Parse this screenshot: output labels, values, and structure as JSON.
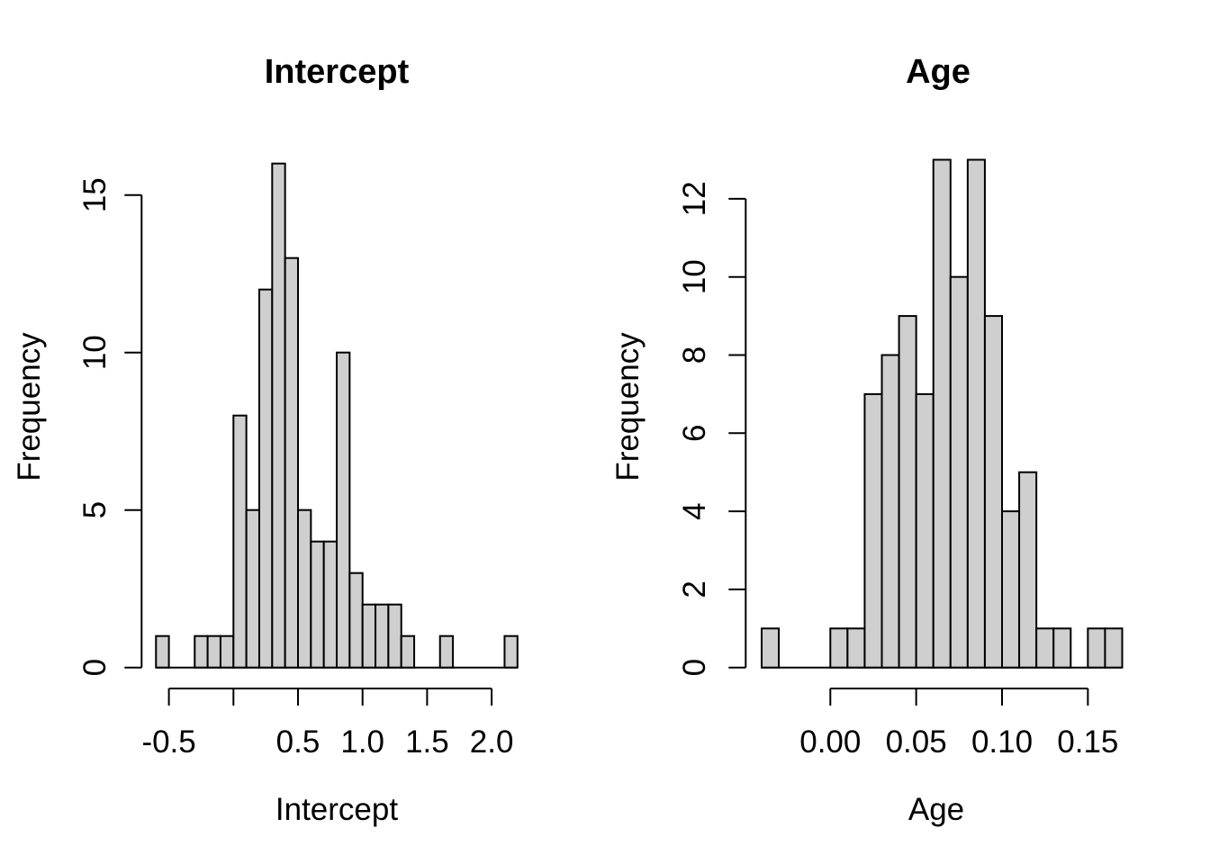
{
  "figure": {
    "background": "#ffffff",
    "axis_color": "#000000",
    "bar_fill": "#cfcfcf",
    "bar_border": "#000000"
  },
  "chart_data": [
    {
      "type": "bar",
      "subtype": "histogram",
      "title": "Intercept",
      "xlabel": "Intercept",
      "ylabel": "Frequency",
      "bin_start": -0.6,
      "bin_width": 0.1,
      "counts": [
        1,
        0,
        0,
        1,
        1,
        1,
        8,
        5,
        12,
        16,
        13,
        5,
        4,
        4,
        10,
        3,
        2,
        2,
        2,
        1,
        0,
        0,
        1,
        0,
        0,
        0,
        0,
        1
      ],
      "x_ticks": [
        {
          "value": -0.5,
          "label": "-0.5"
        },
        {
          "value": 0.0,
          "label": ""
        },
        {
          "value": 0.5,
          "label": "0.5"
        },
        {
          "value": 1.0,
          "label": "1.0"
        },
        {
          "value": 1.5,
          "label": "1.5"
        },
        {
          "value": 2.0,
          "label": "2.0"
        }
      ],
      "y_ticks": [
        {
          "value": 0,
          "label": "0"
        },
        {
          "value": 5,
          "label": "5"
        },
        {
          "value": 10,
          "label": "10"
        },
        {
          "value": 15,
          "label": "15"
        }
      ],
      "xlim": [
        -0.6,
        2.2
      ],
      "ylim": [
        0,
        16
      ],
      "grid": false,
      "legend": false
    },
    {
      "type": "bar",
      "subtype": "histogram",
      "title": "Age",
      "xlabel": "Age",
      "ylabel": "Frequency",
      "bin_start": -0.04,
      "bin_width": 0.01,
      "counts": [
        1,
        0,
        0,
        0,
        1,
        1,
        7,
        8,
        9,
        7,
        13,
        10,
        13,
        9,
        4,
        5,
        1,
        1,
        0,
        1,
        1
      ],
      "x_ticks": [
        {
          "value": 0.0,
          "label": "0.00"
        },
        {
          "value": 0.05,
          "label": "0.05"
        },
        {
          "value": 0.1,
          "label": "0.10"
        },
        {
          "value": 0.15,
          "label": "0.15"
        }
      ],
      "y_ticks": [
        {
          "value": 0,
          "label": "0"
        },
        {
          "value": 2,
          "label": "2"
        },
        {
          "value": 4,
          "label": "4"
        },
        {
          "value": 6,
          "label": "6"
        },
        {
          "value": 8,
          "label": "8"
        },
        {
          "value": 10,
          "label": "10"
        },
        {
          "value": 12,
          "label": "12"
        }
      ],
      "xlim": [
        -0.04,
        0.17
      ],
      "ylim": [
        0,
        13
      ],
      "grid": false,
      "legend": false
    }
  ]
}
